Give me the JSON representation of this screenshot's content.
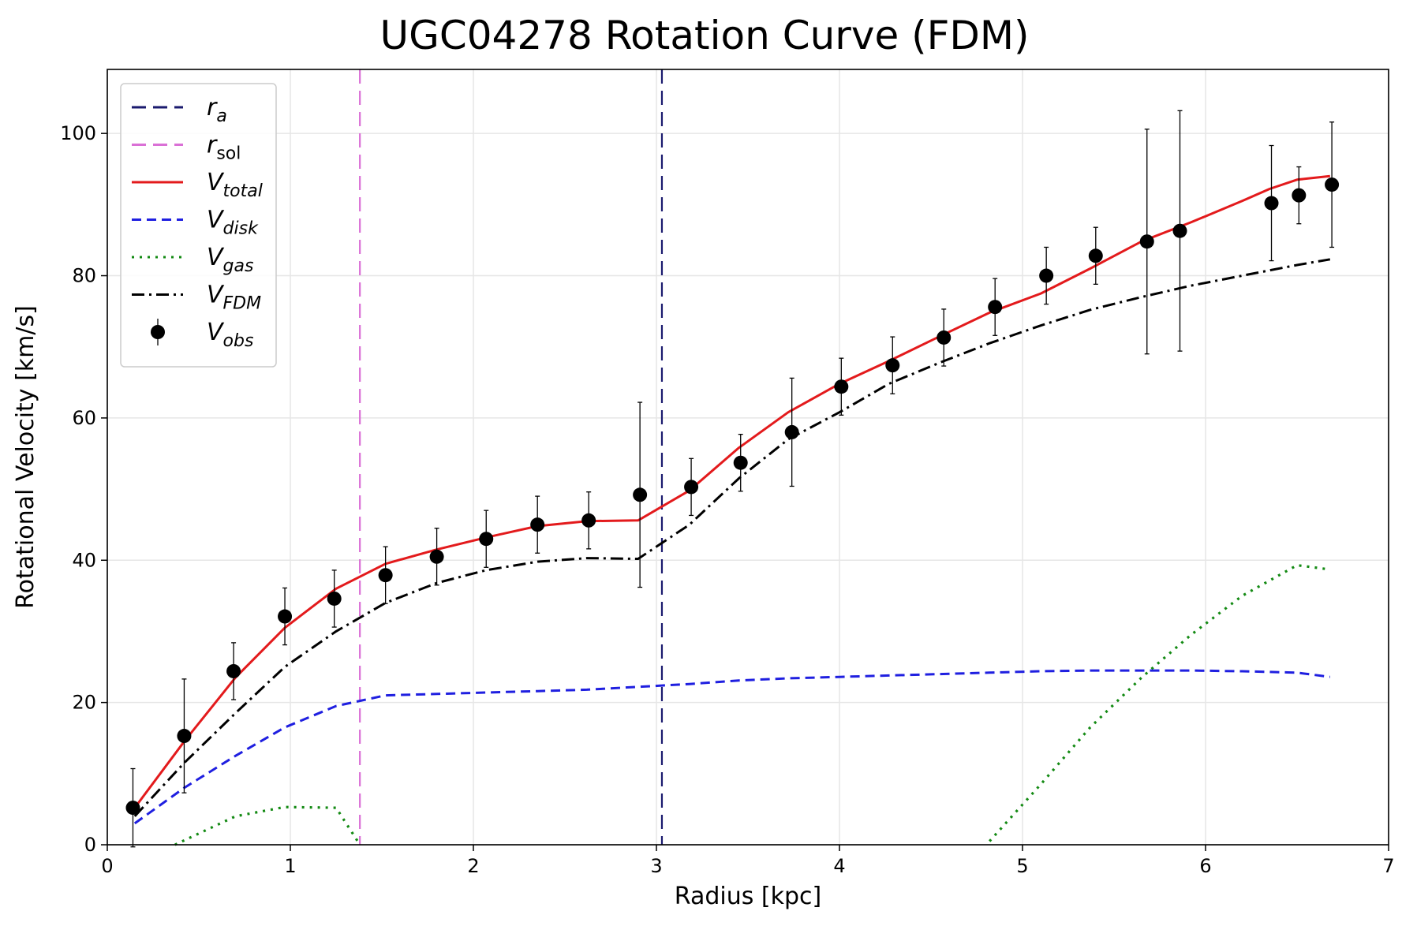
{
  "chart_data": {
    "type": "line",
    "title": "UGC04278 Rotation Curve (FDM)",
    "xlabel": "Radius [kpc]",
    "ylabel": "Rotational Velocity [km/s]",
    "xlim": [
      0,
      7
    ],
    "ylim": [
      0,
      109
    ],
    "xticks": [
      0,
      1,
      2,
      3,
      4,
      5,
      6,
      7
    ],
    "yticks": [
      0,
      20,
      40,
      60,
      80,
      100
    ],
    "grid": true,
    "legend_position": "upper-left",
    "vlines": [
      {
        "id": "ra",
        "legend_main": "r",
        "legend_sub": "a",
        "x": 3.03,
        "color": "#1a1a6e",
        "dash": "18,9"
      },
      {
        "id": "rsol",
        "legend_main": "r",
        "legend_sub": "sol",
        "x": 1.38,
        "color": "#da70d6",
        "dash": "18,9"
      }
    ],
    "series": [
      {
        "id": "vtotal",
        "legend_main": "V",
        "legend_sub": "total",
        "color": "#e31a1c",
        "dash": "none",
        "x": [
          0.15,
          0.42,
          0.7,
          0.97,
          1.25,
          1.52,
          1.8,
          2.07,
          2.35,
          2.62,
          2.9,
          3.18,
          3.45,
          3.72,
          4.0,
          4.27,
          4.55,
          4.82,
          5.1,
          5.37,
          5.65,
          5.92,
          6.2,
          6.35,
          6.5,
          6.68
        ],
        "y": [
          5.2,
          14.5,
          23.5,
          30.5,
          36.0,
          39.5,
          41.5,
          43.2,
          44.8,
          45.5,
          45.6,
          49.8,
          55.8,
          60.8,
          64.8,
          68.0,
          71.5,
          74.8,
          77.5,
          81.0,
          84.8,
          87.5,
          90.5,
          92.2,
          93.5,
          94.0
        ]
      },
      {
        "id": "vdisk",
        "legend_main": "V",
        "legend_sub": "disk",
        "color": "#1f1fe0",
        "dash": "12,7",
        "x": [
          0.15,
          0.42,
          0.7,
          0.97,
          1.25,
          1.52,
          1.8,
          2.07,
          2.35,
          2.62,
          2.9,
          3.18,
          3.45,
          3.72,
          4.0,
          4.27,
          4.55,
          4.82,
          5.1,
          5.37,
          5.65,
          5.92,
          6.2,
          6.5,
          6.68
        ],
        "y": [
          3.0,
          8.0,
          12.5,
          16.5,
          19.5,
          21.0,
          21.2,
          21.4,
          21.6,
          21.8,
          22.2,
          22.6,
          23.1,
          23.4,
          23.6,
          23.8,
          24.0,
          24.2,
          24.4,
          24.5,
          24.5,
          24.5,
          24.4,
          24.2,
          23.6
        ]
      },
      {
        "id": "vgas_inner",
        "legend_main": "V",
        "legend_sub": "gas",
        "color": "#138a13",
        "dash": "3,7",
        "x": [
          0.37,
          0.7,
          0.97,
          1.25,
          1.38
        ],
        "y": [
          0.0,
          4.0,
          5.3,
          5.2,
          0.0
        ]
      },
      {
        "id": "vgas_outer",
        "legend_main": "",
        "legend_sub": "",
        "color": "#138a13",
        "dash": "3,7",
        "x": [
          4.82,
          5.1,
          5.37,
          5.65,
          5.92,
          6.2,
          6.5,
          6.68
        ],
        "y": [
          0.5,
          8.5,
          16.5,
          23.5,
          29.5,
          35.0,
          39.3,
          38.7
        ]
      },
      {
        "id": "vfdm",
        "legend_main": "V",
        "legend_sub": "FDM",
        "color": "#000000",
        "dash": "16,6,3,6",
        "x": [
          0.15,
          0.42,
          0.7,
          0.97,
          1.25,
          1.52,
          1.8,
          2.07,
          2.35,
          2.62,
          2.9,
          3.18,
          3.45,
          3.72,
          4.0,
          4.27,
          4.55,
          4.82,
          5.1,
          5.37,
          5.65,
          5.92,
          6.2,
          6.5,
          6.68
        ],
        "y": [
          4.0,
          11.5,
          18.5,
          25.0,
          30.0,
          34.0,
          36.8,
          38.6,
          39.8,
          40.3,
          40.2,
          45.0,
          51.5,
          57.0,
          60.8,
          64.8,
          67.8,
          70.5,
          73.0,
          75.2,
          77.0,
          78.6,
          80.0,
          81.5,
          82.3
        ]
      }
    ],
    "observations": {
      "legend_main": "V",
      "legend_sub": "obs",
      "color": "#000000",
      "x": [
        0.14,
        0.42,
        0.69,
        0.97,
        1.24,
        1.52,
        1.8,
        2.07,
        2.35,
        2.63,
        2.91,
        3.19,
        3.46,
        3.74,
        4.01,
        4.29,
        4.57,
        4.85,
        5.13,
        5.4,
        5.68,
        5.86,
        6.36,
        6.51,
        6.69
      ],
      "y": [
        5.2,
        15.3,
        24.4,
        32.1,
        34.6,
        37.9,
        40.5,
        43.0,
        45.0,
        45.6,
        49.2,
        50.3,
        53.7,
        58.0,
        64.4,
        67.4,
        71.3,
        75.6,
        80.0,
        82.8,
        84.8,
        86.3,
        90.2,
        91.3,
        92.8
      ],
      "err": [
        5.5,
        8.0,
        4.0,
        4.0,
        4.0,
        4.0,
        4.0,
        4.0,
        4.0,
        4.0,
        13.0,
        4.0,
        4.0,
        7.6,
        4.0,
        4.0,
        4.0,
        4.0,
        4.0,
        4.0,
        15.8,
        16.9,
        8.1,
        4.0,
        8.8
      ]
    }
  }
}
